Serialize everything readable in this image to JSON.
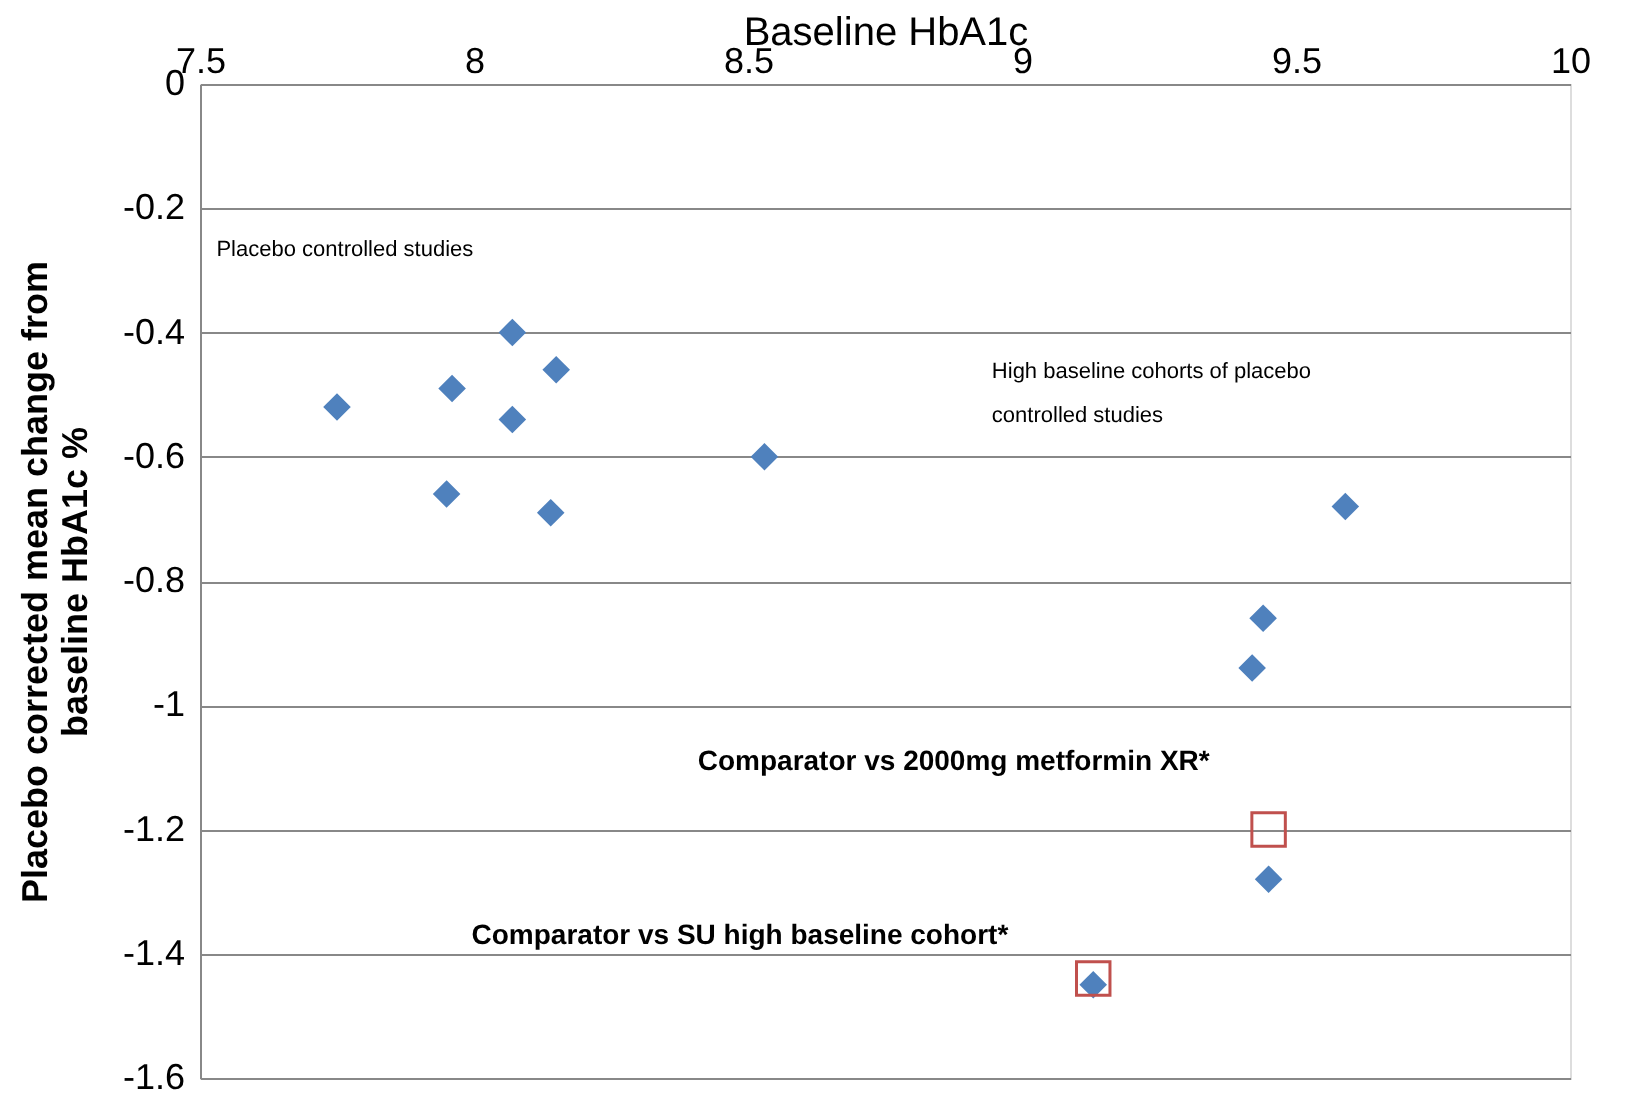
{
  "chart_data": {
    "type": "scatter",
    "xlabel": "Baseline HbA1c",
    "ylabel": "Placebo corrected mean change from\nbaseline HbA1c %",
    "xlim": [
      7.5,
      10
    ],
    "xticks": [
      7.5,
      8,
      8.5,
      9,
      9.5,
      10
    ],
    "ylim": [
      -1.6,
      0
    ],
    "yticks": [
      0,
      -0.2,
      -0.4,
      -0.6,
      -0.8,
      -1,
      -1.2,
      -1.4,
      -1.6
    ],
    "grid": "y",
    "series": [
      {
        "color": "#4f81bd",
        "marker": "diamond",
        "x": [
          7.75,
          7.96,
          8.07,
          8.15,
          8.07,
          7.95,
          8.14,
          8.53,
          9.59,
          9.44,
          9.42,
          9.45,
          9.13
        ],
        "values": [
          -0.52,
          -0.49,
          -0.4,
          -0.46,
          -0.54,
          -0.66,
          -0.69,
          -0.6,
          -0.68,
          -0.86,
          -0.94,
          -1.28,
          -1.45
        ]
      },
      {
        "color": "#c0504d",
        "marker": "square",
        "x": [
          9.45,
          9.13
        ],
        "values": [
          -1.2,
          -1.44
        ]
      }
    ],
    "annotations": [
      "Placebo controlled studies",
      "High baseline cohorts of placebo\ncontrolled studies",
      "Comparator vs 2000mg metformin XR*",
      "Comparator vs SU high baseline cohort*"
    ]
  }
}
